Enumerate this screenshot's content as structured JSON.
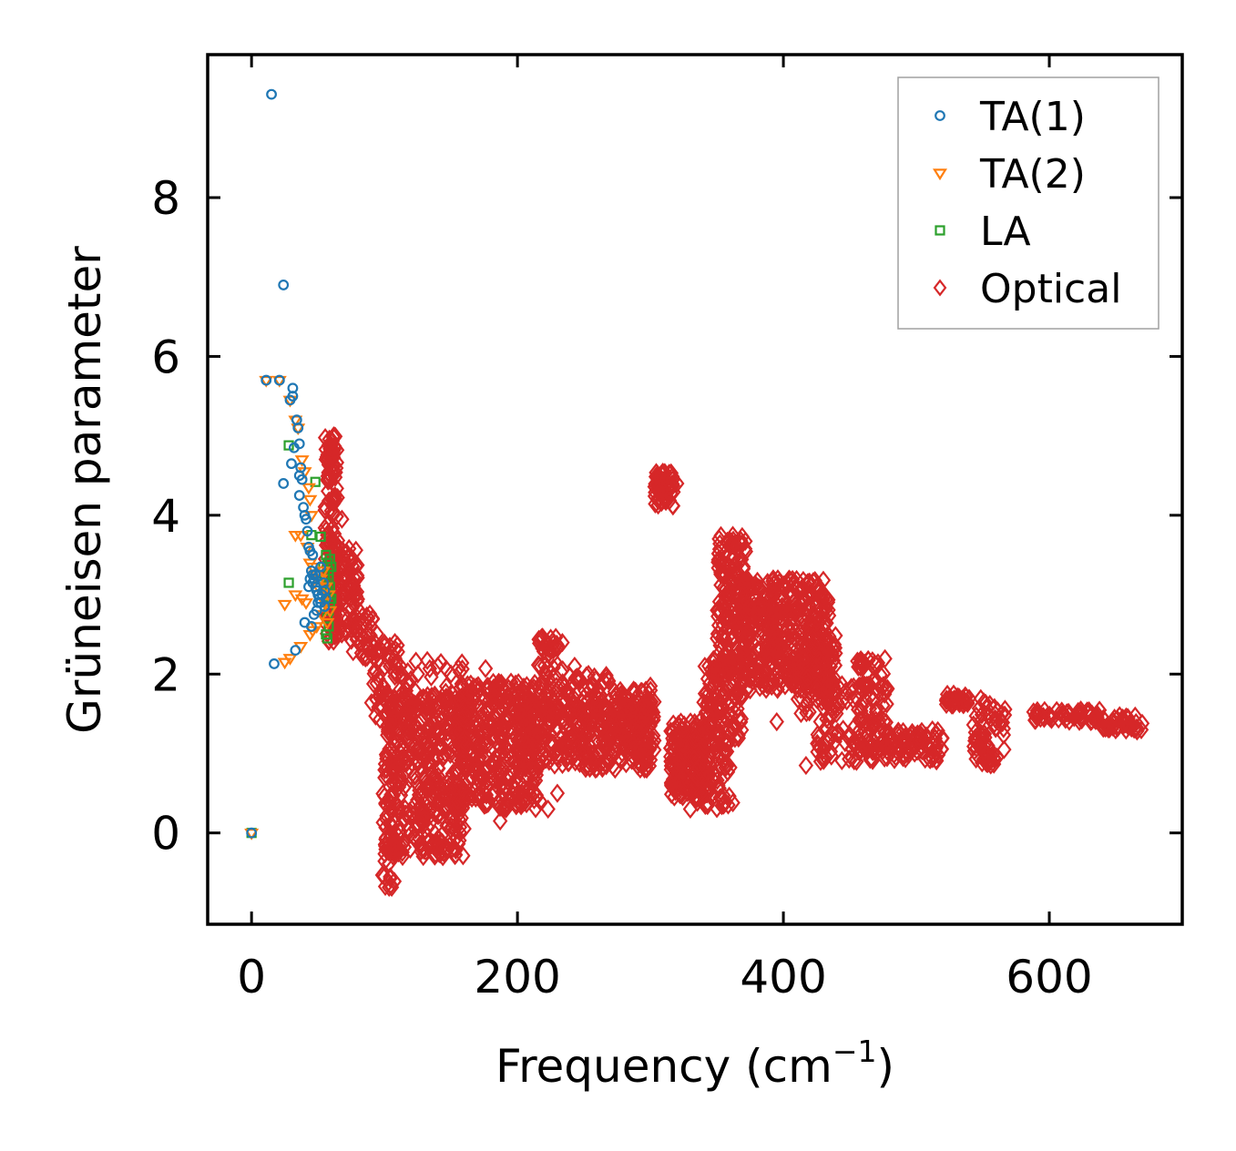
{
  "chart_data": {
    "type": "scatter",
    "title": "",
    "xlabel": "Frequency (cm",
    "xlabel_sup": "−1",
    "xlabel_close": ")",
    "ylabel": "Grüneisen parameter",
    "xlim": [
      -33,
      700
    ],
    "ylim": [
      -1.15,
      9.8
    ],
    "xticks": [
      0,
      200,
      400,
      600
    ],
    "xtick_labels": [
      "0",
      "200",
      "400",
      "600"
    ],
    "yticks": [
      0,
      2,
      4,
      6,
      8
    ],
    "ytick_labels": [
      "0",
      "2",
      "4",
      "6",
      "8"
    ],
    "grid": false,
    "legend_position": "top-right",
    "series": [
      {
        "name": "TA(1)",
        "marker": "circle",
        "color": "#1f77b4",
        "points": [
          [
            0,
            0
          ],
          [
            15,
            9.3
          ],
          [
            24,
            6.9
          ],
          [
            11,
            5.7
          ],
          [
            21,
            5.7
          ],
          [
            31,
            5.6
          ],
          [
            31,
            5.5
          ],
          [
            29,
            5.45
          ],
          [
            34,
            5.2
          ],
          [
            35,
            5.1
          ],
          [
            24,
            4.4
          ],
          [
            30,
            4.65
          ],
          [
            32,
            4.85
          ],
          [
            36,
            4.9
          ],
          [
            37,
            4.6
          ],
          [
            36,
            4.5
          ],
          [
            38,
            4.45
          ],
          [
            36,
            4.25
          ],
          [
            39,
            4.1
          ],
          [
            40,
            4.0
          ],
          [
            41,
            3.95
          ],
          [
            42,
            3.8
          ],
          [
            43,
            3.6
          ],
          [
            44,
            3.55
          ],
          [
            46,
            3.5
          ],
          [
            45,
            3.3
          ],
          [
            46,
            3.25
          ],
          [
            47,
            3.2
          ],
          [
            48,
            3.1
          ],
          [
            49,
            3.05
          ],
          [
            50,
            3.0
          ],
          [
            51,
            2.95
          ],
          [
            43,
            3.1
          ],
          [
            44,
            3.2
          ],
          [
            46,
            3.15
          ],
          [
            48,
            3.25
          ],
          [
            50,
            2.9
          ],
          [
            49,
            2.8
          ],
          [
            52,
            2.9
          ],
          [
            53,
            3.0
          ],
          [
            55,
            3.05
          ],
          [
            56,
            2.95
          ],
          [
            47,
            2.75
          ],
          [
            40,
            2.65
          ],
          [
            45,
            2.6
          ],
          [
            33,
            2.3
          ],
          [
            17,
            2.13
          ],
          [
            52,
            3.35
          ],
          [
            54,
            3.15
          ],
          [
            55,
            2.85
          ]
        ]
      },
      {
        "name": "TA(2)",
        "marker": "triangle-down",
        "color": "#ff7f0e",
        "points": [
          [
            0,
            0
          ],
          [
            11,
            5.7
          ],
          [
            21,
            5.7
          ],
          [
            29,
            5.45
          ],
          [
            33,
            5.2
          ],
          [
            35,
            5.1
          ],
          [
            38,
            4.7
          ],
          [
            40,
            4.55
          ],
          [
            43,
            4.35
          ],
          [
            44,
            4.2
          ],
          [
            45,
            4.0
          ],
          [
            33,
            3.75
          ],
          [
            37,
            3.75
          ],
          [
            42,
            3.6
          ],
          [
            44,
            3.4
          ],
          [
            46,
            3.35
          ],
          [
            48,
            3.25
          ],
          [
            50,
            3.1
          ],
          [
            52,
            3.2
          ],
          [
            54,
            3.3
          ],
          [
            56,
            3.1
          ],
          [
            58,
            3.0
          ],
          [
            33,
            3.0
          ],
          [
            38,
            2.95
          ],
          [
            41,
            2.9
          ],
          [
            25,
            2.88
          ],
          [
            46,
            2.55
          ],
          [
            49,
            2.6
          ],
          [
            44,
            2.5
          ],
          [
            37,
            2.35
          ],
          [
            29,
            2.2
          ],
          [
            25,
            2.15
          ],
          [
            53,
            2.75
          ],
          [
            55,
            2.9
          ],
          [
            57,
            2.65
          ],
          [
            59,
            2.8
          ]
        ]
      },
      {
        "name": "LA",
        "marker": "square",
        "color": "#2ca02c",
        "points": [
          [
            0,
            0
          ],
          [
            28,
            4.88
          ],
          [
            48,
            4.42
          ],
          [
            52,
            3.73
          ],
          [
            45,
            3.75
          ],
          [
            28,
            3.15
          ],
          [
            56,
            3.5
          ],
          [
            57,
            3.4
          ],
          [
            58,
            3.3
          ],
          [
            58,
            3.2
          ],
          [
            59,
            3.1
          ],
          [
            58,
            3.0
          ],
          [
            59,
            2.9
          ],
          [
            58,
            2.8
          ],
          [
            57,
            2.7
          ],
          [
            58,
            2.6
          ],
          [
            56,
            2.5
          ],
          [
            57,
            2.45
          ],
          [
            54,
            3.35
          ],
          [
            55,
            3.25
          ],
          [
            56,
            3.15
          ],
          [
            57,
            3.05
          ],
          [
            59,
            3.45
          ],
          [
            60,
            2.95
          ],
          [
            60,
            3.35
          ]
        ]
      },
      {
        "name": "Optical",
        "marker": "diamond",
        "color": "#d62728",
        "blobs": [
          {
            "x": [
              55,
              65
            ],
            "y": [
              2.4,
              5.0
            ],
            "n": 150
          },
          {
            "x": [
              62,
              80
            ],
            "y": [
              2.5,
              3.6
            ],
            "n": 80
          },
          {
            "x": [
              75,
              95
            ],
            "y": [
              2.2,
              2.8
            ],
            "n": 40
          },
          {
            "x": [
              90,
              110
            ],
            "y": [
              1.3,
              2.4
            ],
            "n": 60
          },
          {
            "x": [
              100,
              160
            ],
            "y": [
              -0.3,
              1.8
            ],
            "n": 450
          },
          {
            "x": [
              97,
              108
            ],
            "y": [
              -0.7,
              0.5
            ],
            "n": 30
          },
          {
            "x": [
              110,
              160
            ],
            "y": [
              1.4,
              2.2
            ],
            "n": 40
          },
          {
            "x": [
              155,
              215
            ],
            "y": [
              0.3,
              1.9
            ],
            "n": 400
          },
          {
            "x": [
              200,
              300
            ],
            "y": [
              0.8,
              1.6
            ],
            "n": 320
          },
          {
            "x": [
              215,
              235
            ],
            "y": [
              1.5,
              2.5
            ],
            "n": 60
          },
          {
            "x": [
              235,
              270
            ],
            "y": [
              1.5,
              2.0
            ],
            "n": 60
          },
          {
            "x": [
              270,
              303
            ],
            "y": [
              1.0,
              1.8
            ],
            "n": 120
          },
          {
            "x": [
              303,
              318
            ],
            "y": [
              4.1,
              4.55
            ],
            "n": 60
          },
          {
            "x": [
              315,
              345
            ],
            "y": [
              0.45,
              1.4
            ],
            "n": 200
          },
          {
            "x": [
              330,
              360
            ],
            "y": [
              0.3,
              1.3
            ],
            "n": 70
          },
          {
            "x": [
              340,
              370
            ],
            "y": [
              1.1,
              2.2
            ],
            "n": 120
          },
          {
            "x": [
              350,
              372
            ],
            "y": [
              2.0,
              3.75
            ],
            "n": 180
          },
          {
            "x": [
              370,
              435
            ],
            "y": [
              1.8,
              3.2
            ],
            "n": 450
          },
          {
            "x": [
              410,
              440
            ],
            "y": [
              1.5,
              2.5
            ],
            "n": 80
          },
          {
            "x": [
              425,
              470
            ],
            "y": [
              0.9,
              1.9
            ],
            "n": 100
          },
          {
            "x": [
              455,
              480
            ],
            "y": [
              1.0,
              2.2
            ],
            "n": 80
          },
          {
            "x": [
              475,
              520
            ],
            "y": [
              0.9,
              1.3
            ],
            "n": 80
          },
          {
            "x": [
              522,
              540
            ],
            "y": [
              1.6,
              1.75
            ],
            "n": 30
          },
          {
            "x": [
              543,
              568
            ],
            "y": [
              0.85,
              1.7
            ],
            "n": 70
          },
          {
            "x": [
              588,
              640
            ],
            "y": [
              1.4,
              1.55
            ],
            "n": 60
          },
          {
            "x": [
              640,
              670
            ],
            "y": [
              1.28,
              1.48
            ],
            "n": 40
          }
        ],
        "points": [
          [
            62,
            5.0
          ],
          [
            63,
            4.85
          ],
          [
            60,
            4.75
          ],
          [
            68,
            3.95
          ],
          [
            72,
            3.2
          ],
          [
            80,
            2.55
          ],
          [
            85,
            2.45
          ],
          [
            100,
            2.35
          ],
          [
            110,
            2.28
          ],
          [
            125,
            2.0
          ],
          [
            140,
            2.1
          ],
          [
            150,
            2.0
          ],
          [
            176,
            2.07
          ],
          [
            187,
            0.15
          ],
          [
            190,
            0.3
          ],
          [
            217,
            0.4
          ],
          [
            223,
            0.3
          ],
          [
            230,
            0.5
          ],
          [
            225,
            2.45
          ],
          [
            243,
            2.1
          ],
          [
            300,
            1.85
          ],
          [
            312,
            4.45
          ],
          [
            320,
            4.4
          ],
          [
            330,
            0.3
          ],
          [
            355,
            0.35
          ],
          [
            362,
            0.38
          ],
          [
            374,
            1.85
          ],
          [
            392,
            3.17
          ],
          [
            417,
            0.85
          ],
          [
            428,
            0.9
          ],
          [
            455,
            0.9
          ],
          [
            478,
            0.95
          ],
          [
            490,
            0.95
          ],
          [
            400,
            2.3
          ],
          [
            395,
            1.4
          ]
        ]
      }
    ]
  }
}
